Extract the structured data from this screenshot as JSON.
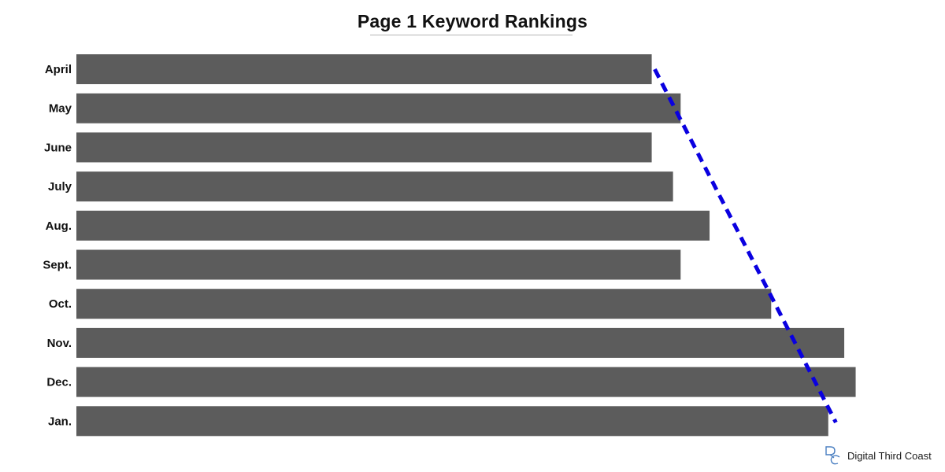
{
  "chart_data": {
    "type": "bar",
    "orientation": "horizontal",
    "title": "Page 1 Keyword Rankings",
    "xlabel": "",
    "ylabel": "",
    "categories": [
      "April",
      "May",
      "June",
      "July",
      "Aug.",
      "Sept.",
      "Oct.",
      "Nov.",
      "Dec.",
      "Jan."
    ],
    "series": [
      {
        "values": [
          756,
          794,
          756,
          784,
          832,
          794,
          913,
          1009,
          1024,
          988
        ]
      }
    ],
    "xlim": [
      0,
      1100
    ],
    "grid": false,
    "legend": "none",
    "trendline": {
      "style": "dashed",
      "from": 760,
      "to": 998
    },
    "colors": {
      "bar": "#5c5c5c",
      "trendline": "#0a00e0",
      "title_underline": "#b5b5b5"
    }
  },
  "brand": {
    "name": "Digital Third Coast",
    "logo_icon": "dtc-logo-icon"
  }
}
